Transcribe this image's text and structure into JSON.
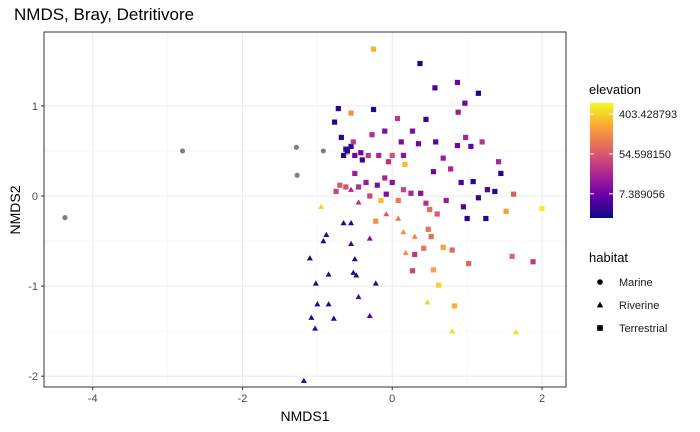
{
  "chart_data": {
    "type": "scatter",
    "title": "NMDS, Bray, Detritivore",
    "xlabel": "NMDS1",
    "ylabel": "NMDS2",
    "xlim": [
      -4.65,
      2.32
    ],
    "ylim": [
      -2.12,
      1.82
    ],
    "x_ticks": [
      -4,
      -2,
      0,
      2
    ],
    "y_ticks": [
      -2,
      -1,
      0,
      1
    ],
    "grid": true,
    "legend_placement": "right",
    "color_legend": {
      "title": "elevation",
      "scale": "log",
      "range": [
        2.2,
        700
      ],
      "labels": [
        "403.428793",
        "54.598150",
        "7.389056"
      ],
      "label_values": [
        403.428793,
        54.59815,
        7.389056
      ],
      "gradient_colors": [
        "#0d0887",
        "#6a00a8",
        "#b12a90",
        "#e16462",
        "#fca636",
        "#f0f921"
      ]
    },
    "shape_legend": {
      "title": "habitat",
      "entries": [
        {
          "label": "Marine",
          "shape": "circle"
        },
        {
          "label": "Riverine",
          "shape": "triangle"
        },
        {
          "label": "Terrestrial",
          "shape": "square"
        }
      ]
    },
    "na_color": "#808080",
    "series": [
      {
        "name": "Marine",
        "shape": "circle",
        "points": [
          {
            "x": -4.37,
            "y": -0.24,
            "elev": null
          },
          {
            "x": -2.8,
            "y": 0.5,
            "elev": null
          },
          {
            "x": -1.28,
            "y": 0.54,
            "elev": null
          },
          {
            "x": -1.27,
            "y": 0.23,
            "elev": null
          },
          {
            "x": -0.92,
            "y": 0.5,
            "elev": null
          }
        ]
      },
      {
        "name": "Riverine",
        "shape": "triangle",
        "points": [
          {
            "x": -1.18,
            "y": -2.05,
            "elev": 3
          },
          {
            "x": -1.1,
            "y": -0.69,
            "elev": 3
          },
          {
            "x": -1.02,
            "y": -0.97,
            "elev": 3
          },
          {
            "x": -1.0,
            "y": -1.2,
            "elev": 3
          },
          {
            "x": -1.08,
            "y": -1.35,
            "elev": 3
          },
          {
            "x": -1.03,
            "y": -1.47,
            "elev": 3
          },
          {
            "x": -0.92,
            "y": -0.5,
            "elev": 3
          },
          {
            "x": -0.88,
            "y": -0.43,
            "elev": 3
          },
          {
            "x": -0.85,
            "y": -0.87,
            "elev": 3
          },
          {
            "x": -0.85,
            "y": -1.2,
            "elev": 3
          },
          {
            "x": -0.78,
            "y": -1.36,
            "elev": 3
          },
          {
            "x": -0.65,
            "y": -0.3,
            "elev": 3
          },
          {
            "x": -0.55,
            "y": -0.3,
            "elev": 3
          },
          {
            "x": -0.55,
            "y": -0.53,
            "elev": 4
          },
          {
            "x": -0.5,
            "y": -0.7,
            "elev": 3
          },
          {
            "x": -0.52,
            "y": -0.85,
            "elev": 3
          },
          {
            "x": -0.48,
            "y": -0.88,
            "elev": 3
          },
          {
            "x": -0.45,
            "y": -1.12,
            "elev": 5
          },
          {
            "x": -0.3,
            "y": -1.33,
            "elev": 5
          },
          {
            "x": -0.22,
            "y": -0.97,
            "elev": 3
          },
          {
            "x": -0.3,
            "y": -0.47,
            "elev": 10
          },
          {
            "x": -0.55,
            "y": 0.07,
            "elev": 20
          },
          {
            "x": -0.45,
            "y": -0.07,
            "elev": 25
          },
          {
            "x": 0.08,
            "y": -0.25,
            "elev": 100
          },
          {
            "x": 0.15,
            "y": -0.4,
            "elev": 150
          },
          {
            "x": 0.18,
            "y": -0.63,
            "elev": 150
          },
          {
            "x": 0.3,
            "y": -0.45,
            "elev": 120
          },
          {
            "x": -0.08,
            "y": -0.2,
            "elev": 60
          },
          {
            "x": -0.95,
            "y": -0.12,
            "elev": 400
          },
          {
            "x": -0.6,
            "y": 0.48,
            "elev": 400
          },
          {
            "x": 0.47,
            "y": -1.18,
            "elev": 400
          },
          {
            "x": 0.8,
            "y": -1.5,
            "elev": 450
          },
          {
            "x": 1.65,
            "y": -1.51,
            "elev": 450
          },
          {
            "x": -0.6,
            "y": 0.5,
            "elev": 350
          }
        ]
      },
      {
        "name": "Terrestrial",
        "shape": "square",
        "points": [
          {
            "x": -0.25,
            "y": 1.63,
            "elev": 250
          },
          {
            "x": 0.37,
            "y": 1.47,
            "elev": 2.5
          },
          {
            "x": -0.72,
            "y": 0.97,
            "elev": 3
          },
          {
            "x": -0.25,
            "y": 0.96,
            "elev": 3
          },
          {
            "x": -0.55,
            "y": 0.92,
            "elev": 150
          },
          {
            "x": -0.77,
            "y": 0.82,
            "elev": 3
          },
          {
            "x": -0.68,
            "y": 0.65,
            "elev": 3
          },
          {
            "x": -0.62,
            "y": 0.52,
            "elev": 4
          },
          {
            "x": -0.65,
            "y": 0.45,
            "elev": 3
          },
          {
            "x": -0.55,
            "y": 0.55,
            "elev": 3
          },
          {
            "x": -0.6,
            "y": 0.5,
            "elev": 3
          },
          {
            "x": -0.5,
            "y": 0.45,
            "elev": 8
          },
          {
            "x": -0.4,
            "y": 0.4,
            "elev": 4
          },
          {
            "x": -0.52,
            "y": 0.6,
            "elev": 30
          },
          {
            "x": -0.42,
            "y": 0.48,
            "elev": 8
          },
          {
            "x": -0.32,
            "y": 0.45,
            "elev": 30
          },
          {
            "x": -0.27,
            "y": 0.68,
            "elev": 25
          },
          {
            "x": -0.1,
            "y": 0.72,
            "elev": 10
          },
          {
            "x": 0.07,
            "y": 0.86,
            "elev": 30
          },
          {
            "x": 0.27,
            "y": 0.72,
            "elev": 10
          },
          {
            "x": 0.35,
            "y": 0.58,
            "elev": 8
          },
          {
            "x": 0.15,
            "y": 0.45,
            "elev": 12
          },
          {
            "x": -0.18,
            "y": 0.45,
            "elev": 20
          },
          {
            "x": -0.05,
            "y": 0.38,
            "elev": 25
          },
          {
            "x": 0.12,
            "y": 0.6,
            "elev": 10
          },
          {
            "x": 0.58,
            "y": 0.6,
            "elev": 6
          },
          {
            "x": 0.68,
            "y": 0.42,
            "elev": 15
          },
          {
            "x": 0.55,
            "y": 0.27,
            "elev": 8
          },
          {
            "x": 0.87,
            "y": 0.56,
            "elev": 8
          },
          {
            "x": 0.78,
            "y": 0.3,
            "elev": 20
          },
          {
            "x": 0.98,
            "y": 0.65,
            "elev": 20
          },
          {
            "x": 1.05,
            "y": 0.55,
            "elev": 7
          },
          {
            "x": 1.2,
            "y": 0.6,
            "elev": 30
          },
          {
            "x": 1.42,
            "y": 0.38,
            "elev": 20
          },
          {
            "x": 1.45,
            "y": 0.25,
            "elev": 3
          },
          {
            "x": 1.37,
            "y": 0.05,
            "elev": 3
          },
          {
            "x": 1.27,
            "y": 0.07,
            "elev": 5
          },
          {
            "x": 1.15,
            "y": -0.02,
            "elev": 4
          },
          {
            "x": 1.08,
            "y": 0.16,
            "elev": 3
          },
          {
            "x": 0.92,
            "y": 0.15,
            "elev": 5
          },
          {
            "x": 0.95,
            "y": -0.12,
            "elev": 5
          },
          {
            "x": 1.0,
            "y": -0.25,
            "elev": 3
          },
          {
            "x": 1.25,
            "y": -0.25,
            "elev": 3
          },
          {
            "x": 0.97,
            "y": 1.03,
            "elev": 8
          },
          {
            "x": 0.87,
            "y": 1.26,
            "elev": 8
          },
          {
            "x": 0.57,
            "y": 1.2,
            "elev": 5
          },
          {
            "x": 1.15,
            "y": 1.14,
            "elev": 2.5
          },
          {
            "x": 0.45,
            "y": 0.85,
            "elev": 4
          },
          {
            "x": 0.88,
            "y": 0.93,
            "elev": 15
          },
          {
            "x": 0.08,
            "y": -0.05,
            "elev": 100
          },
          {
            "x": 0.15,
            "y": 0.07,
            "elev": 40
          },
          {
            "x": 0.25,
            "y": 0.03,
            "elev": 20
          },
          {
            "x": 0.38,
            "y": 0.03,
            "elev": 10
          },
          {
            "x": 0.45,
            "y": -0.08,
            "elev": 25
          },
          {
            "x": 0.5,
            "y": -0.15,
            "elev": 80
          },
          {
            "x": 0.6,
            "y": -0.2,
            "elev": 60
          },
          {
            "x": 0.72,
            "y": -0.05,
            "elev": 15
          },
          {
            "x": 0.52,
            "y": -0.45,
            "elev": 80
          },
          {
            "x": 0.42,
            "y": -0.58,
            "elev": 100
          },
          {
            "x": 0.3,
            "y": -0.65,
            "elev": 30
          },
          {
            "x": 0.27,
            "y": -0.83,
            "elev": 40
          },
          {
            "x": 0.48,
            "y": -0.37,
            "elev": 90
          },
          {
            "x": 0.8,
            "y": -0.6,
            "elev": 80
          },
          {
            "x": 1.02,
            "y": -0.75,
            "elev": 70
          },
          {
            "x": 0.55,
            "y": -0.82,
            "elev": 200
          },
          {
            "x": 0.68,
            "y": -0.57,
            "elev": 200
          },
          {
            "x": 0.62,
            "y": -0.99,
            "elev": 400
          },
          {
            "x": 0.83,
            "y": -1.22,
            "elev": 250
          },
          {
            "x": 1.6,
            "y": -0.67,
            "elev": 70
          },
          {
            "x": 1.88,
            "y": -0.73,
            "elev": 30
          },
          {
            "x": 1.62,
            "y": 0.02,
            "elev": 60
          },
          {
            "x": 1.52,
            "y": -0.17,
            "elev": 200
          },
          {
            "x": 2.0,
            "y": -0.14,
            "elev": 600
          },
          {
            "x": 0.17,
            "y": 0.35,
            "elev": 300
          },
          {
            "x": -0.15,
            "y": -0.05,
            "elev": 300
          },
          {
            "x": -0.3,
            "y": 0.0,
            "elev": 40
          },
          {
            "x": -0.22,
            "y": -0.28,
            "elev": 150
          },
          {
            "x": -0.45,
            "y": 0.1,
            "elev": 25
          },
          {
            "x": -0.35,
            "y": 0.15,
            "elev": 15
          },
          {
            "x": -0.2,
            "y": 0.12,
            "elev": 10
          },
          {
            "x": -0.1,
            "y": 0.2,
            "elev": 20
          },
          {
            "x": 0.0,
            "y": 0.15,
            "elev": 12
          },
          {
            "x": -0.08,
            "y": 0.02,
            "elev": 10
          },
          {
            "x": -0.7,
            "y": 0.12,
            "elev": 60
          },
          {
            "x": -0.62,
            "y": 0.1,
            "elev": 50
          },
          {
            "x": -0.75,
            "y": 0.05,
            "elev": 40
          },
          {
            "x": -0.5,
            "y": 0.25,
            "elev": 15
          },
          {
            "x": 0.0,
            "y": 0.45,
            "elev": 50
          }
        ]
      }
    ]
  }
}
